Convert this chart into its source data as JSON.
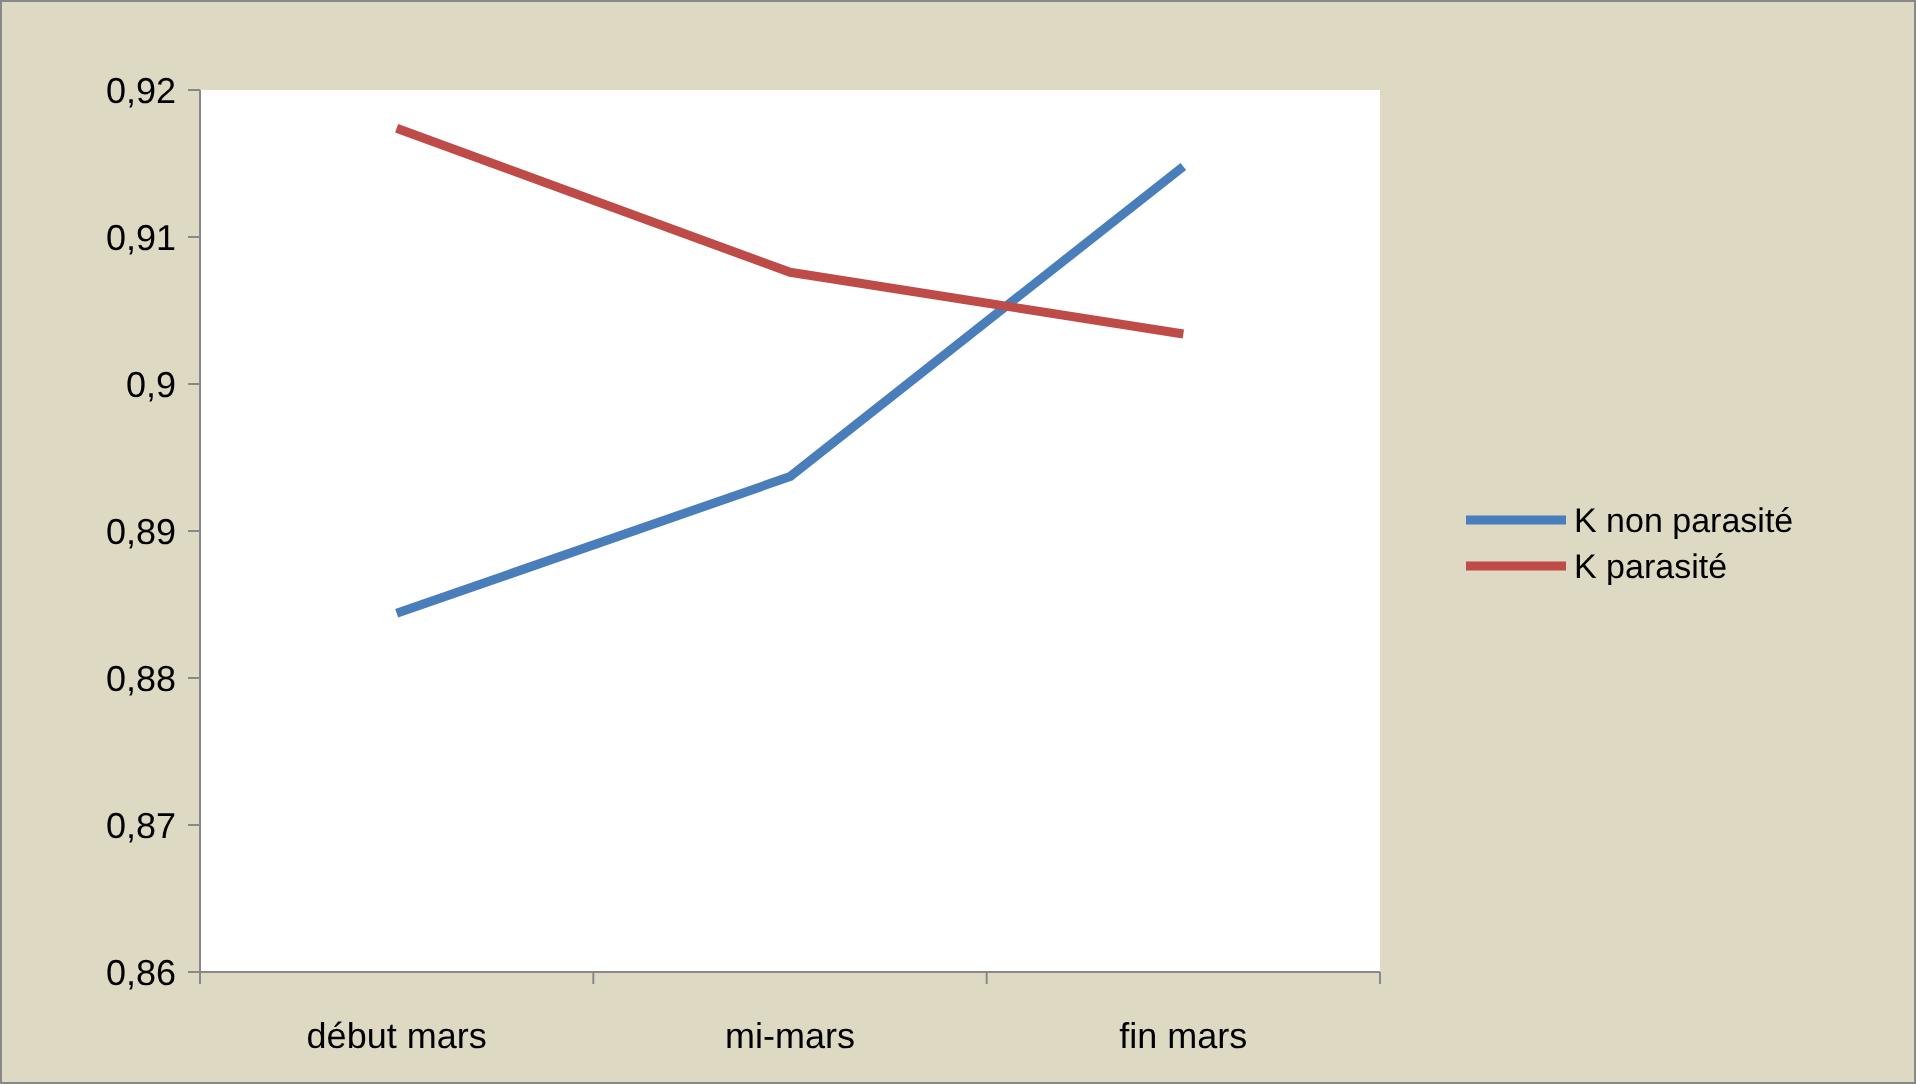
{
  "chart_data": {
    "type": "line",
    "categories": [
      "début mars",
      "mi-mars",
      "fin mars"
    ],
    "series": [
      {
        "name": "K non parasité",
        "color": "#4a7ebb",
        "values": [
          0.8844,
          0.8937,
          0.9148
        ]
      },
      {
        "name": "K parasité",
        "color": "#be4b48",
        "values": [
          0.9174,
          0.9076,
          0.9034
        ]
      }
    ],
    "ylim": [
      0.86,
      0.92
    ],
    "yticks": [
      {
        "value": 0.86,
        "label": "0,86"
      },
      {
        "value": 0.87,
        "label": "0,87"
      },
      {
        "value": 0.88,
        "label": "0,88"
      },
      {
        "value": 0.89,
        "label": "0,89"
      },
      {
        "value": 0.9,
        "label": "0,9"
      },
      {
        "value": 0.91,
        "label": "0,91"
      },
      {
        "value": 0.92,
        "label": "0,92"
      }
    ],
    "grid": false,
    "legend": "right",
    "marker": "none",
    "line_style": "solid"
  }
}
